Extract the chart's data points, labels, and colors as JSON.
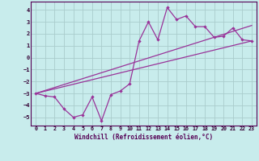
{
  "xlabel": "Windchill (Refroidissement éolien,°C)",
  "bg_color": "#c8ecec",
  "line_color": "#993399",
  "grid_color": "#aacccc",
  "xlim": [
    -0.5,
    23.5
  ],
  "ylim": [
    -5.7,
    4.7
  ],
  "yticks": [
    -5,
    -4,
    -3,
    -2,
    -1,
    0,
    1,
    2,
    3,
    4
  ],
  "xticks": [
    0,
    1,
    2,
    3,
    4,
    5,
    6,
    7,
    8,
    9,
    10,
    11,
    12,
    13,
    14,
    15,
    16,
    17,
    18,
    19,
    20,
    21,
    22,
    23
  ],
  "line1_x": [
    0,
    1,
    2,
    3,
    4,
    5,
    6,
    7,
    8,
    9,
    10,
    11,
    12,
    13,
    14,
    15,
    16,
    17,
    18,
    19,
    20,
    21,
    22,
    23
  ],
  "line1_y": [
    -3.0,
    -3.2,
    -3.3,
    -4.3,
    -5.0,
    -4.8,
    -3.3,
    -5.3,
    -3.1,
    -2.8,
    -2.2,
    1.4,
    3.0,
    1.5,
    4.2,
    3.2,
    3.5,
    2.6,
    2.6,
    1.7,
    1.8,
    2.5,
    1.5,
    1.4
  ],
  "line2_x": [
    0,
    23
  ],
  "line2_y": [
    -3.0,
    1.4
  ],
  "line3_x": [
    0,
    23
  ],
  "line3_y": [
    -3.0,
    2.7
  ]
}
